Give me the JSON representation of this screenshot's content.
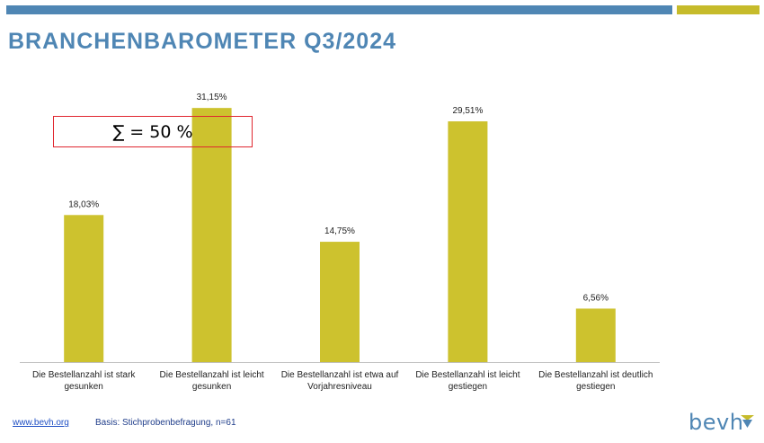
{
  "header": {
    "title": "BRANCHENBAROMETER Q3/2024",
    "accent_blue": "#4f86b4",
    "accent_olive": "#c6bb2b"
  },
  "annotation": {
    "sum_text": "∑ = 50 %",
    "border_color": "#e0262f"
  },
  "footer": {
    "link": "www.bevh.org",
    "basis": "Basis: Stichprobenbefragung, n=61"
  },
  "logo": {
    "text": "bevh",
    "icon": "bevh-chevron-logo-icon"
  },
  "chart_data": {
    "type": "bar",
    "categories": [
      [
        "Die Bestellanzahl ist stark",
        "gesunken"
      ],
      [
        "Die Bestellanzahl ist leicht",
        "gesunken"
      ],
      [
        "Die Bestellanzahl ist etwa auf",
        "Vorjahresniveau"
      ],
      [
        "Die Bestellanzahl ist leicht",
        "gestiegen"
      ],
      [
        "Die Bestellanzahl ist deutlich",
        "gestiegen"
      ]
    ],
    "values": [
      18.03,
      31.15,
      14.75,
      29.51,
      6.56
    ],
    "value_labels": [
      "18,03%",
      "31,15%",
      "14,75%",
      "29,51%",
      "6,56%"
    ],
    "bar_color": "#cdc22e",
    "ylim": [
      0,
      32
    ],
    "grid": false,
    "legend": "none"
  }
}
